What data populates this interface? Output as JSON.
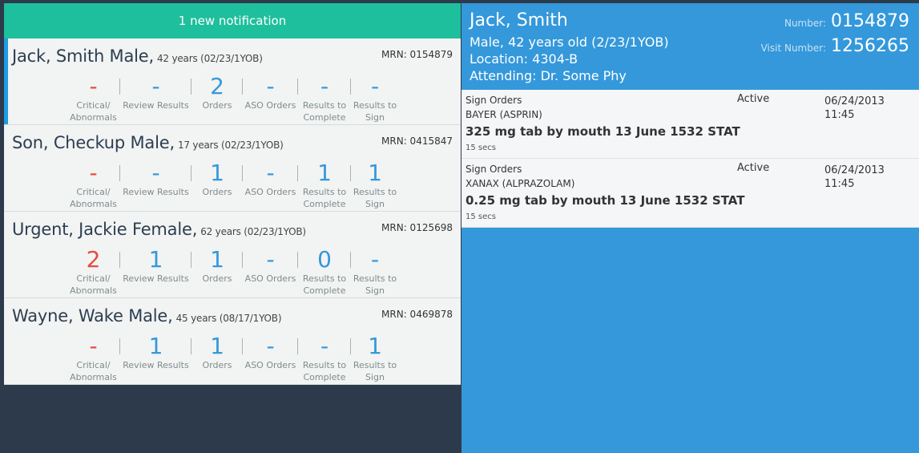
{
  "notification": "1 new notification",
  "metric_labels": [
    "Critical/ Abnormals",
    "Review Results",
    "Orders",
    "ASO Orders",
    "Results to Complete",
    "Results to Sign"
  ],
  "patients": [
    {
      "name": "Jack, Smith Male,",
      "age": "42 years (02/23/1YOB)",
      "mrn": "MRN: 0154879",
      "values": [
        "-",
        "-",
        "2",
        "-",
        "-",
        "-"
      ]
    },
    {
      "name": "Son, Checkup Male,",
      "age": "17 years (02/23/1YOB)",
      "mrn": "MRN: 0415847",
      "values": [
        "-",
        "-",
        "1",
        "-",
        "1",
        "1"
      ]
    },
    {
      "name": "Urgent, Jackie Female,",
      "age": "62 years (02/23/1YOB)",
      "mrn": "MRN: 0125698",
      "values": [
        "2",
        "1",
        "1",
        "-",
        "0",
        "-"
      ]
    },
    {
      "name": "Wayne, Wake Male,",
      "age": "45 years (08/17/1YOB)",
      "mrn": "MRN: 0469878",
      "values": [
        "-",
        "1",
        "1",
        "-",
        "-",
        "1"
      ]
    }
  ],
  "detail": {
    "name": "Jack, Smith",
    "info": [
      "Male, 42 years old (2/23/1YOB)",
      "Location: 4304-B",
      "Attending: Dr. Some Phy"
    ],
    "number_label": "Number:",
    "number": "0154879",
    "visit_label": "Visit Number:",
    "visit_number": "1256265",
    "orders": [
      {
        "type": "Sign Orders",
        "drug": "BAYER (ASPRIN)",
        "detail": "325 mg tab by mouth 13 June 1532 STAT",
        "since": "15 secs",
        "status": "Active",
        "date": "06/24/2013",
        "time": "11:45"
      },
      {
        "type": "Sign Orders",
        "drug": "XANAX (ALPRAZOLAM)",
        "detail": "0.25 mg tab by mouth 13 June 1532 STAT",
        "since": "15 secs",
        "status": "Active",
        "date": "06/24/2013",
        "time": "11:45"
      }
    ]
  }
}
